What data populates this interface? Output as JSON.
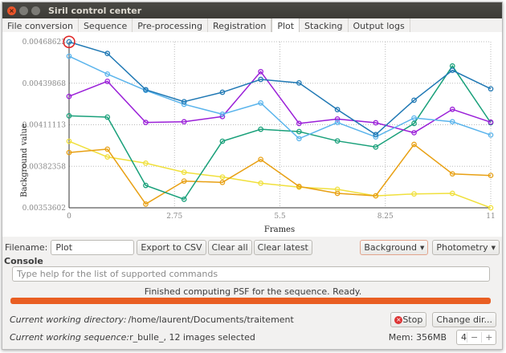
{
  "window": {
    "title": "Siril control center"
  },
  "tabs": [
    {
      "label": "File conversion"
    },
    {
      "label": "Sequence"
    },
    {
      "label": "Pre-processing"
    },
    {
      "label": "Registration"
    },
    {
      "label": "Plot",
      "active": true
    },
    {
      "label": "Stacking"
    },
    {
      "label": "Output logs"
    }
  ],
  "chart_data": {
    "type": "line",
    "xlabel": "Frames",
    "ylabel": "Background value",
    "xlim": [
      0,
      11
    ],
    "ylim": [
      0.00353602,
      0.00468623
    ],
    "xticks": [
      "0",
      "2.75",
      "5.5",
      "8.25",
      "11"
    ],
    "yticks": [
      "0.00468623",
      "0.00439868",
      "0.00411113",
      "0.00382358",
      "0.00353602"
    ],
    "grid": true,
    "x": [
      0,
      1,
      2,
      3,
      4,
      5,
      6,
      7,
      8,
      9,
      10,
      11
    ],
    "highlighted_point": {
      "series": 0,
      "x": 0
    },
    "series": [
      {
        "color": "#1f78b4",
        "values": [
          0.004685,
          0.004605,
          0.004354,
          0.004271,
          0.004336,
          0.004425,
          0.004401,
          0.004216,
          0.004043,
          0.004281,
          0.004488,
          0.00436
        ]
      },
      {
        "color": "#5ab4ec",
        "values": [
          0.004586,
          0.004462,
          0.004349,
          0.004253,
          0.004184,
          0.004262,
          0.004015,
          0.004127,
          0.004027,
          0.004158,
          0.004132,
          0.00404
        ]
      },
      {
        "color": "#9a1fd8",
        "values": [
          0.004308,
          0.004412,
          0.004127,
          0.004132,
          0.004168,
          0.004479,
          0.00412,
          0.004151,
          0.004125,
          0.004056,
          0.004218,
          0.004129
        ]
      },
      {
        "color": "#19a07a",
        "values": [
          0.004173,
          0.004164,
          0.003691,
          0.003595,
          0.003997,
          0.00408,
          0.004064,
          0.003999,
          0.003957,
          0.00412,
          0.004518,
          0.004125
        ]
      },
      {
        "color": "#e8a013",
        "values": [
          0.003919,
          0.003942,
          0.003562,
          0.003721,
          0.003712,
          0.003871,
          0.003684,
          0.003636,
          0.003619,
          0.003975,
          0.003771,
          0.00376
        ]
      },
      {
        "color": "#f0e03c",
        "values": [
          0.003997,
          0.003888,
          0.003845,
          0.003782,
          0.003749,
          0.003706,
          0.003679,
          0.003664,
          0.003619,
          0.003632,
          0.003636,
          0.003536
        ]
      }
    ]
  },
  "controls": {
    "filename_label": "Filename:",
    "filename_value": "Plot",
    "export_csv": "Export to CSV",
    "clear_all": "Clear all",
    "clear_latest": "Clear latest",
    "background_dropdown": "Background",
    "photometry_dropdown": "Photometry"
  },
  "console": {
    "title": "Console",
    "placeholder": "Type help for the list of supported commands",
    "status": "Finished computing PSF for the sequence. Ready.",
    "progress": 1.0,
    "progress_color": "#e95e22"
  },
  "footer": {
    "cwd_label": "Current working directory:",
    "cwd_value": "/home/laurent/Documents/traitement",
    "stop": "Stop",
    "change_dir": "Change dir...",
    "seq_label": "Current working sequence:",
    "seq_value": "r_bulle_, 12 images selected",
    "mem": "Mem: 356MB",
    "threads": "4",
    "minus": "−",
    "plus": "+"
  }
}
